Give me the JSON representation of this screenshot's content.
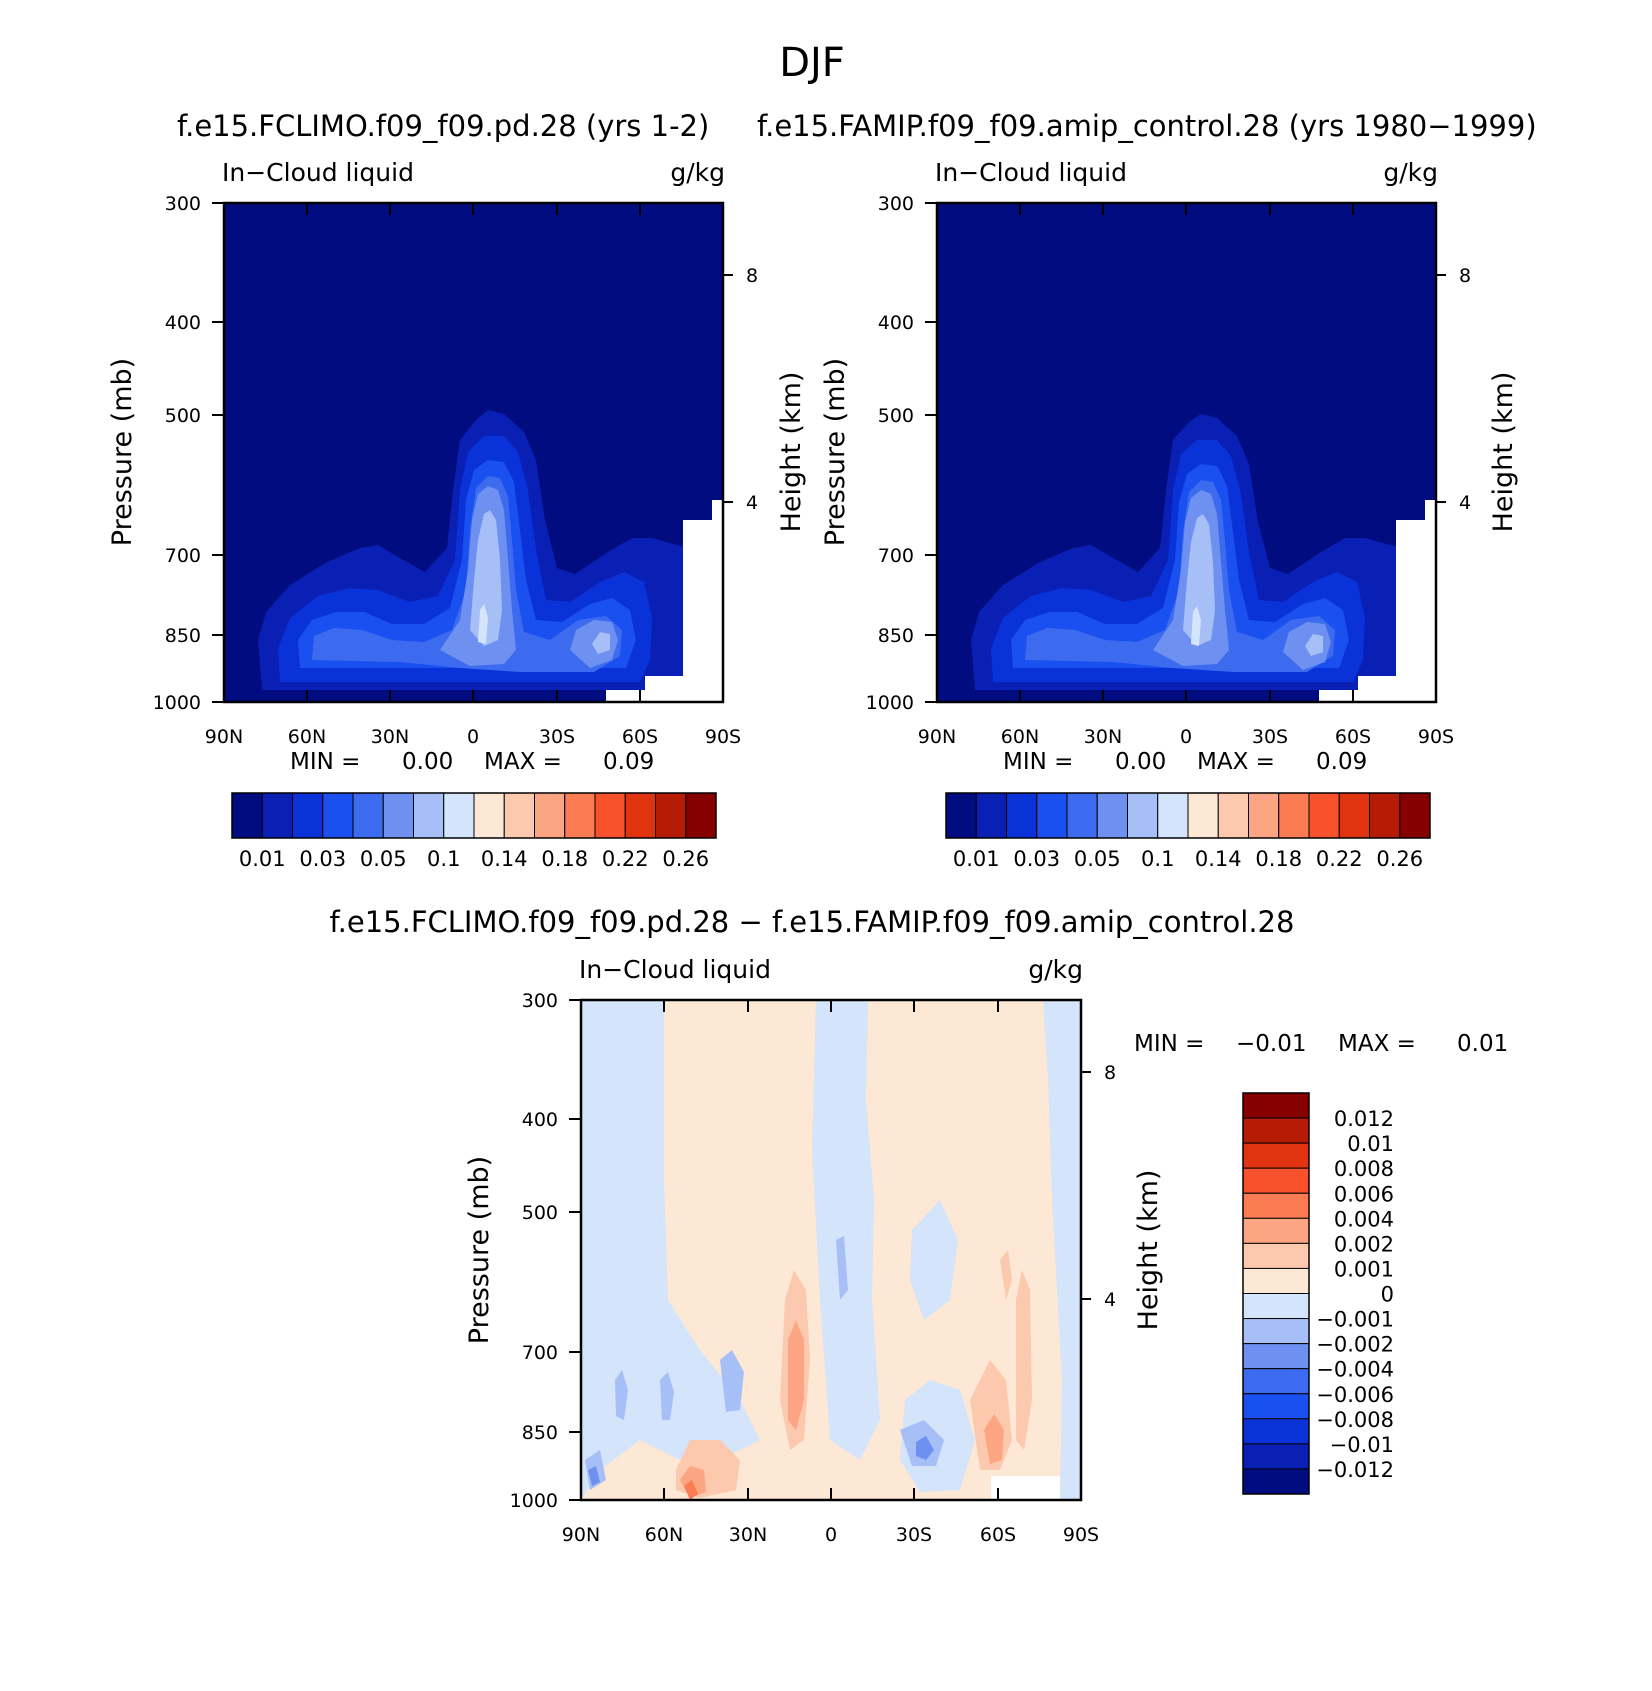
{
  "page_title": "DJF",
  "chart_data": [
    {
      "type": "contour",
      "title": "f.e15.FCLIMO.f09_f09.pd.28 (yrs 1-2)",
      "variable": "In−Cloud liquid",
      "units": "g/kg",
      "ylabel": "Pressure (mb)",
      "ylabel_right": "Height (km)",
      "x_ticks": [
        "90N",
        "60N",
        "30N",
        "0",
        "30S",
        "60S",
        "90S"
      ],
      "y_ticks": [
        "300",
        "400",
        "500",
        "700",
        "850",
        "1000"
      ],
      "y_right_ticks": [
        "8",
        "4"
      ],
      "min_label": "MIN =",
      "min_value": "0.00",
      "max_label": "MAX =",
      "max_value": "0.09",
      "colorbar_labels": [
        "0.01",
        "0.03",
        "0.05",
        "0.1",
        "0.14",
        "0.18",
        "0.22",
        "0.26"
      ],
      "colorbar_colors": [
        "#000c80",
        "#0a1fb3",
        "#0a32d9",
        "#1a4ff0",
        "#3d6bef",
        "#6e90f0",
        "#a6bff7",
        "#d3e4fb",
        "#fde8d6",
        "#fcc8ae",
        "#fca583",
        "#fb7b52",
        "#f7522b",
        "#e0330f",
        "#b61c05",
        "#860000"
      ]
    },
    {
      "type": "contour",
      "title": "f.e15.FAMIP.f09_f09.amip_control.28 (yrs 1980−1999)",
      "variable": "In−Cloud liquid",
      "units": "g/kg",
      "ylabel": "Pressure (mb)",
      "ylabel_right": "Height (km)",
      "x_ticks": [
        "90N",
        "60N",
        "30N",
        "0",
        "30S",
        "60S",
        "90S"
      ],
      "y_ticks": [
        "300",
        "400",
        "500",
        "700",
        "850",
        "1000"
      ],
      "y_right_ticks": [
        "8",
        "4"
      ],
      "min_label": "MIN =",
      "min_value": "0.00",
      "max_label": "MAX =",
      "max_value": "0.09",
      "colorbar_labels": [
        "0.01",
        "0.03",
        "0.05",
        "0.1",
        "0.14",
        "0.18",
        "0.22",
        "0.26"
      ],
      "colorbar_colors": [
        "#000c80",
        "#0a1fb3",
        "#0a32d9",
        "#1a4ff0",
        "#3d6bef",
        "#6e90f0",
        "#a6bff7",
        "#d3e4fb",
        "#fde8d6",
        "#fcc8ae",
        "#fca583",
        "#fb7b52",
        "#f7522b",
        "#e0330f",
        "#b61c05",
        "#860000"
      ]
    },
    {
      "type": "contour",
      "title": "f.e15.FCLIMO.f09_f09.pd.28 − f.e15.FAMIP.f09_f09.amip_control.28",
      "variable": "In−Cloud liquid",
      "units": "g/kg",
      "ylabel": "Pressure (mb)",
      "ylabel_right": "Height (km)",
      "x_ticks": [
        "90N",
        "60N",
        "30N",
        "0",
        "30S",
        "60S",
        "90S"
      ],
      "y_ticks": [
        "300",
        "400",
        "500",
        "700",
        "850",
        "1000"
      ],
      "y_right_ticks": [
        "8",
        "4"
      ],
      "min_label": "MIN =",
      "min_value": "−0.01",
      "max_label": "MAX =",
      "max_value": "0.01",
      "colorbar_labels": [
        "0.012",
        "0.01",
        "0.008",
        "0.006",
        "0.004",
        "0.002",
        "0.001",
        "0",
        "−0.001",
        "−0.002",
        "−0.004",
        "−0.006",
        "−0.008",
        "−0.01",
        "−0.012"
      ],
      "colorbar_colors": [
        "#860000",
        "#b61c05",
        "#e0330f",
        "#f7522b",
        "#fb7b52",
        "#fca583",
        "#fcc8ae",
        "#fde8d6",
        "#d3e4fb",
        "#a6bff7",
        "#6e90f0",
        "#3d6bef",
        "#1a4ff0",
        "#0a32d9",
        "#0a1fb3",
        "#000c80"
      ]
    }
  ]
}
